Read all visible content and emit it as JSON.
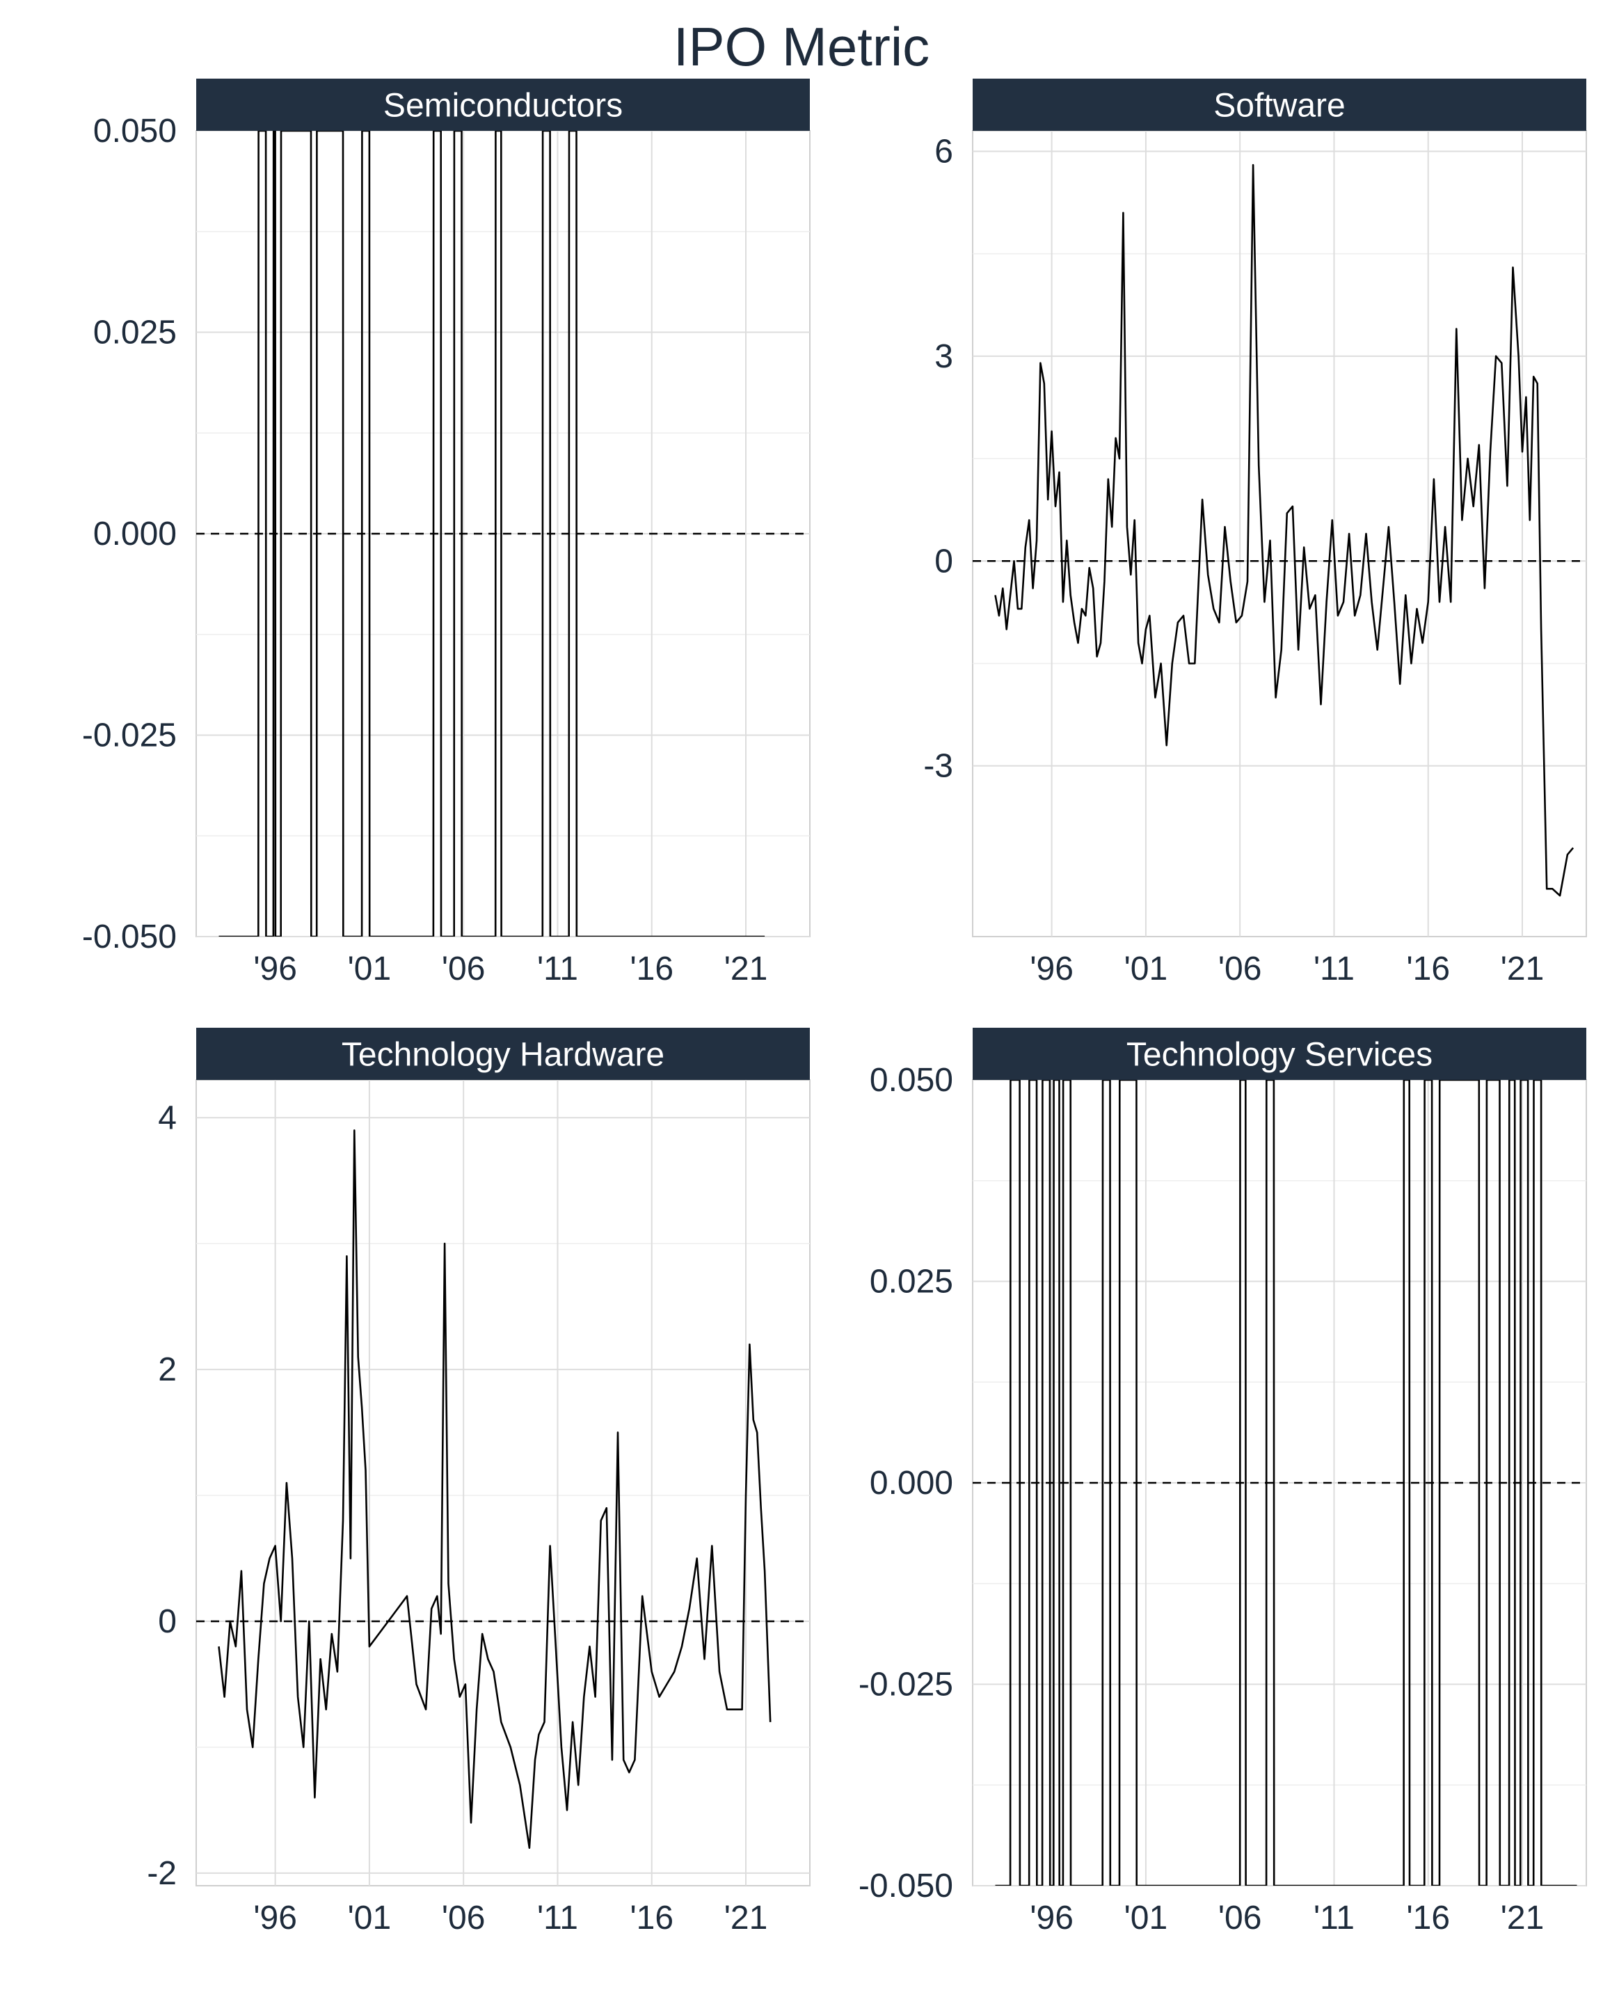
{
  "title": "IPO Metric",
  "chart_data": [
    {
      "type": "line",
      "panel": "Semiconductors",
      "ylim": [
        -0.05,
        0.05
      ],
      "y_ticks": [
        -0.05,
        -0.025,
        0.0,
        0.025,
        0.05
      ],
      "y_tick_labels": [
        "-0.050",
        "-0.025",
        "0.000",
        "0.025",
        "0.050"
      ],
      "x_ticks": [
        1996,
        2001,
        2006,
        2011,
        2016,
        2021
      ],
      "x_tick_labels": [
        "'96",
        "'01",
        "'06",
        "'11",
        "'16",
        "'21"
      ],
      "reference_line": 0,
      "grid": true,
      "x": [
        1993.0,
        1995.1,
        1995.11,
        1995.5,
        1995.51,
        1995.9,
        1995.91,
        1996.0,
        1996.01,
        1996.3,
        1996.31,
        1997.9,
        1997.91,
        1998.2,
        1998.21,
        1999.6,
        1999.61,
        2000.6,
        2000.61,
        2001.0,
        2001.01,
        2004.4,
        2004.41,
        2004.8,
        2004.81,
        2005.5,
        2005.51,
        2005.9,
        2005.91,
        2007.7,
        2007.71,
        2008.0,
        2008.01,
        2010.2,
        2010.21,
        2010.6,
        2010.61,
        2011.6,
        2011.61,
        2012.0,
        2012.01,
        2022.0
      ],
      "y": [
        -0.05,
        -0.05,
        0.05,
        0.05,
        -0.05,
        -0.05,
        0.05,
        0.05,
        -0.05,
        -0.05,
        0.05,
        0.05,
        -0.05,
        -0.05,
        0.05,
        0.05,
        -0.05,
        -0.05,
        0.05,
        0.05,
        -0.05,
        -0.05,
        0.05,
        0.05,
        -0.05,
        -0.05,
        0.05,
        0.05,
        -0.05,
        -0.05,
        0.05,
        0.05,
        -0.05,
        -0.05,
        0.05,
        0.05,
        -0.05,
        -0.05,
        0.05,
        0.05,
        -0.05,
        -0.05
      ]
    },
    {
      "type": "line",
      "panel": "Software",
      "ylim": [
        -5.5,
        6.3
      ],
      "y_ticks": [
        -3,
        0,
        3,
        6
      ],
      "y_tick_labels": [
        "-3",
        "0",
        "3",
        "6"
      ],
      "x_ticks": [
        1996,
        2001,
        2006,
        2011,
        2016,
        2021
      ],
      "x_tick_labels": [
        "'96",
        "'01",
        "'06",
        "'11",
        "'16",
        "'21"
      ],
      "reference_line": 0,
      "grid": true,
      "x": [
        1993.0,
        1993.2,
        1993.4,
        1993.6,
        1993.8,
        1994.0,
        1994.2,
        1994.4,
        1994.6,
        1994.8,
        1995.0,
        1995.2,
        1995.4,
        1995.6,
        1995.8,
        1996.0,
        1996.2,
        1996.4,
        1996.6,
        1996.8,
        1997.0,
        1997.2,
        1997.4,
        1997.6,
        1997.8,
        1998.0,
        1998.2,
        1998.4,
        1998.6,
        1998.8,
        1999.0,
        1999.2,
        1999.4,
        1999.6,
        1999.8,
        2000.0,
        2000.2,
        2000.4,
        2000.6,
        2000.8,
        2001.0,
        2001.2,
        2001.5,
        2001.8,
        2002.1,
        2002.4,
        2002.7,
        2003.0,
        2003.3,
        2003.6,
        2004.0,
        2004.3,
        2004.6,
        2004.9,
        2005.2,
        2005.5,
        2005.8,
        2006.1,
        2006.4,
        2006.7,
        2007.0,
        2007.3,
        2007.6,
        2007.9,
        2008.2,
        2008.5,
        2008.8,
        2009.1,
        2009.4,
        2009.7,
        2010.0,
        2010.3,
        2010.6,
        2010.9,
        2011.2,
        2011.5,
        2011.8,
        2012.1,
        2012.4,
        2012.7,
        2013.0,
        2013.3,
        2013.6,
        2013.9,
        2014.2,
        2014.5,
        2014.8,
        2015.1,
        2015.4,
        2015.7,
        2016.0,
        2016.3,
        2016.6,
        2016.9,
        2017.2,
        2017.5,
        2017.8,
        2018.1,
        2018.4,
        2018.7,
        2019.0,
        2019.3,
        2019.6,
        2019.9,
        2020.2,
        2020.5,
        2020.8,
        2021.0,
        2021.2,
        2021.4,
        2021.6,
        2021.8,
        2022.0,
        2022.3,
        2022.6,
        2023.0,
        2023.4,
        2023.7
      ],
      "y": [
        -0.5,
        -0.8,
        -0.4,
        -1.0,
        -0.5,
        0.0,
        -0.7,
        -0.7,
        0.2,
        0.6,
        -0.4,
        0.3,
        2.9,
        2.6,
        0.9,
        1.9,
        0.8,
        1.3,
        -0.6,
        0.3,
        -0.5,
        -0.9,
        -1.2,
        -0.7,
        -0.8,
        -0.1,
        -0.4,
        -1.4,
        -1.2,
        -0.3,
        1.2,
        0.5,
        1.8,
        1.5,
        5.1,
        0.5,
        -0.2,
        0.6,
        -1.2,
        -1.5,
        -1.0,
        -0.8,
        -2.0,
        -1.5,
        -2.7,
        -1.5,
        -0.9,
        -0.8,
        -1.5,
        -1.5,
        0.9,
        -0.2,
        -0.7,
        -0.9,
        0.5,
        -0.3,
        -0.9,
        -0.8,
        -0.3,
        5.8,
        1.4,
        -0.6,
        0.3,
        -2.0,
        -1.3,
        0.7,
        0.8,
        -1.3,
        0.2,
        -0.7,
        -0.5,
        -2.1,
        -0.6,
        0.6,
        -0.8,
        -0.6,
        0.4,
        -0.8,
        -0.5,
        0.4,
        -0.6,
        -1.3,
        -0.4,
        0.5,
        -0.6,
        -1.8,
        -0.5,
        -1.5,
        -0.7,
        -1.2,
        -0.6,
        1.2,
        -0.6,
        0.5,
        -0.6,
        3.4,
        0.6,
        1.5,
        0.8,
        1.7,
        -0.4,
        1.6,
        3.0,
        2.9,
        1.1,
        4.3,
        3.0,
        1.6,
        2.4,
        0.6,
        2.7,
        2.6,
        -1.0,
        -4.8,
        -4.8,
        -4.9,
        -4.3,
        -4.2
      ]
    },
    {
      "type": "line",
      "panel": "Technology Hardware",
      "ylim": [
        -2.1,
        4.3
      ],
      "y_ticks": [
        -2,
        0,
        2,
        4
      ],
      "y_tick_labels": [
        "-2",
        "0",
        "2",
        "4"
      ],
      "x_ticks": [
        1996,
        2001,
        2006,
        2011,
        2016,
        2021
      ],
      "x_tick_labels": [
        "'96",
        "'01",
        "'06",
        "'11",
        "'16",
        "'21"
      ],
      "reference_line": 0,
      "grid": true,
      "x": [
        1993.0,
        1993.3,
        1993.6,
        1993.9,
        1994.2,
        1994.5,
        1994.8,
        1995.1,
        1995.4,
        1995.7,
        1996.0,
        1996.3,
        1996.6,
        1996.9,
        1997.2,
        1997.5,
        1997.8,
        1998.1,
        1998.4,
        1998.7,
        1999.0,
        1999.3,
        1999.6,
        1999.8,
        2000.0,
        2000.2,
        2000.4,
        2000.6,
        2000.8,
        2001.0,
        2002.0,
        2003.0,
        2003.5,
        2004.0,
        2004.3,
        2004.6,
        2004.8,
        2005.0,
        2005.2,
        2005.5,
        2005.8,
        2006.1,
        2006.4,
        2006.7,
        2007.0,
        2007.3,
        2007.6,
        2008.0,
        2008.5,
        2009.0,
        2009.5,
        2009.8,
        2010.0,
        2010.3,
        2010.6,
        2010.9,
        2011.2,
        2011.5,
        2011.8,
        2012.1,
        2012.4,
        2012.7,
        2013.0,
        2013.3,
        2013.6,
        2013.9,
        2014.2,
        2014.5,
        2014.8,
        2015.1,
        2015.5,
        2016.0,
        2016.4,
        2016.8,
        2017.2,
        2017.6,
        2018.0,
        2018.4,
        2018.8,
        2019.2,
        2019.6,
        2020.0,
        2020.4,
        2020.8,
        2021.0,
        2021.2,
        2021.4,
        2021.6,
        2021.8,
        2022.0,
        2022.3
      ],
      "y": [
        -0.2,
        -0.6,
        0.0,
        -0.2,
        0.4,
        -0.7,
        -1.0,
        -0.3,
        0.3,
        0.5,
        0.6,
        0.0,
        1.1,
        0.5,
        -0.6,
        -1.0,
        0.0,
        -1.4,
        -0.3,
        -0.7,
        -0.1,
        -0.4,
        0.8,
        2.9,
        0.5,
        3.9,
        2.1,
        1.7,
        1.2,
        -0.2,
        0.0,
        0.2,
        -0.5,
        -0.7,
        0.1,
        0.2,
        -0.1,
        3.0,
        0.3,
        -0.3,
        -0.6,
        -0.5,
        -1.6,
        -0.7,
        -0.1,
        -0.3,
        -0.4,
        -0.8,
        -1.0,
        -1.3,
        -1.8,
        -1.1,
        -0.9,
        -0.8,
        0.6,
        -0.2,
        -1.0,
        -1.5,
        -0.8,
        -1.3,
        -0.6,
        -0.2,
        -0.6,
        0.8,
        0.9,
        -1.1,
        1.5,
        -1.1,
        -1.2,
        -1.1,
        0.2,
        -0.4,
        -0.6,
        -0.5,
        -0.4,
        -0.2,
        0.1,
        0.5,
        -0.3,
        0.6,
        -0.4,
        -0.7,
        -0.7,
        -0.7,
        1.0,
        2.2,
        1.6,
        1.5,
        0.9,
        0.4,
        -0.8
      ]
    },
    {
      "type": "line",
      "panel": "Technology Services",
      "ylim": [
        -0.05,
        0.05
      ],
      "y_ticks": [
        -0.05,
        -0.025,
        0.0,
        0.025,
        0.05
      ],
      "y_tick_labels": [
        "-0.050",
        "-0.025",
        "0.000",
        "0.025",
        "0.050"
      ],
      "x_ticks": [
        1996,
        2001,
        2006,
        2011,
        2016,
        2021
      ],
      "x_tick_labels": [
        "'96",
        "'01",
        "'06",
        "'11",
        "'16",
        "'21"
      ],
      "reference_line": 0,
      "grid": true,
      "x": [
        1993.0,
        1993.8,
        1993.81,
        1994.3,
        1994.31,
        1994.8,
        1994.81,
        1995.2,
        1995.21,
        1995.5,
        1995.51,
        1995.9,
        1995.91,
        1996.1,
        1996.11,
        1996.4,
        1996.41,
        1996.6,
        1996.61,
        1997.0,
        1997.01,
        1998.7,
        1998.71,
        1999.1,
        1999.11,
        1999.6,
        1999.61,
        2000.5,
        2000.51,
        2006.0,
        2006.01,
        2006.3,
        2006.31,
        2007.4,
        2007.41,
        2007.8,
        2007.81,
        2014.7,
        2014.71,
        2015.0,
        2015.01,
        2015.8,
        2015.81,
        2016.2,
        2016.21,
        2016.6,
        2016.61,
        2018.7,
        2018.71,
        2019.1,
        2019.11,
        2019.8,
        2019.81,
        2020.3,
        2020.31,
        2020.6,
        2020.61,
        2020.9,
        2020.91,
        2021.3,
        2021.31,
        2021.6,
        2021.61,
        2022.0,
        2022.01,
        2023.9
      ],
      "y": [
        -0.05,
        -0.05,
        0.05,
        0.05,
        -0.05,
        -0.05,
        0.05,
        0.05,
        -0.05,
        -0.05,
        0.05,
        0.05,
        -0.05,
        -0.05,
        0.05,
        0.05,
        -0.05,
        -0.05,
        0.05,
        0.05,
        -0.05,
        -0.05,
        0.05,
        0.05,
        -0.05,
        -0.05,
        0.05,
        0.05,
        -0.05,
        -0.05,
        0.05,
        0.05,
        -0.05,
        -0.05,
        0.05,
        0.05,
        -0.05,
        -0.05,
        0.05,
        0.05,
        -0.05,
        -0.05,
        0.05,
        0.05,
        -0.05,
        -0.05,
        0.05,
        0.05,
        -0.05,
        -0.05,
        0.05,
        0.05,
        -0.05,
        -0.05,
        0.05,
        0.05,
        -0.05,
        -0.05,
        0.05,
        0.05,
        -0.05,
        -0.05,
        0.05,
        0.05,
        -0.05,
        -0.05
      ]
    }
  ],
  "colors": {
    "strip_background": "#223041",
    "strip_text": "#ffffff",
    "text": "#1e2b3b",
    "grid": "#dddddd",
    "line": "#000000"
  }
}
